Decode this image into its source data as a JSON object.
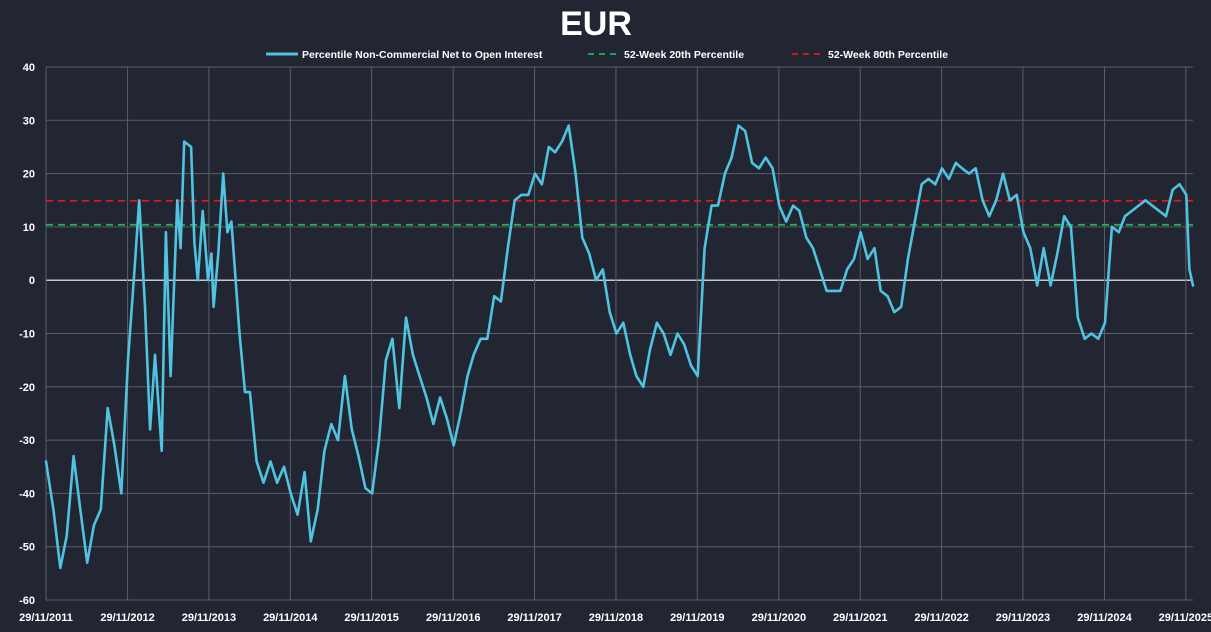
{
  "chart_data": {
    "type": "line",
    "title": "EUR",
    "xlabel": "",
    "ylabel": "",
    "ylim": [
      -60,
      40
    ],
    "yticks": [
      40,
      30,
      20,
      10,
      0,
      -10,
      -20,
      -30,
      -40,
      -50,
      -60
    ],
    "x_range": [
      "2011-11-29",
      "2025-12-31"
    ],
    "xticks": [
      {
        "date": "2011-11-29",
        "label": "29/11/2011"
      },
      {
        "date": "2012-11-29",
        "label": "29/11/2012"
      },
      {
        "date": "2013-11-29",
        "label": "29/11/2013"
      },
      {
        "date": "2014-11-29",
        "label": "29/11/2014"
      },
      {
        "date": "2015-11-29",
        "label": "29/11/2015"
      },
      {
        "date": "2016-11-29",
        "label": "29/11/2016"
      },
      {
        "date": "2017-11-29",
        "label": "29/11/2017"
      },
      {
        "date": "2018-11-29",
        "label": "29/11/2018"
      },
      {
        "date": "2019-11-29",
        "label": "29/11/2019"
      },
      {
        "date": "2020-11-29",
        "label": "29/11/2020"
      },
      {
        "date": "2021-11-29",
        "label": "29/11/2021"
      },
      {
        "date": "2022-11-29",
        "label": "29/11/2022"
      },
      {
        "date": "2023-11-29",
        "label": "29/11/2023"
      },
      {
        "date": "2024-11-29",
        "label": "29/11/2024"
      },
      {
        "date": "2025-11-29",
        "label": "29/11/2025"
      }
    ],
    "grid": true,
    "legend_position": "top",
    "series": [
      {
        "name": "Percentile Non-Commercial Net to Open Interest",
        "color": "#4fc3e0",
        "style": "solid",
        "points": [
          [
            "2011-11-29",
            -34
          ],
          [
            "2012-01-01",
            -43
          ],
          [
            "2012-02-01",
            -54
          ],
          [
            "2012-03-01",
            -48
          ],
          [
            "2012-04-01",
            -33
          ],
          [
            "2012-05-01",
            -43
          ],
          [
            "2012-06-01",
            -53
          ],
          [
            "2012-07-01",
            -46
          ],
          [
            "2012-08-01",
            -43
          ],
          [
            "2012-09-01",
            -24
          ],
          [
            "2012-10-01",
            -31
          ],
          [
            "2012-11-01",
            -40
          ],
          [
            "2012-12-01",
            -15
          ],
          [
            "2013-01-01",
            3
          ],
          [
            "2013-01-20",
            15
          ],
          [
            "2013-02-15",
            -5
          ],
          [
            "2013-03-10",
            -28
          ],
          [
            "2013-04-01",
            -14
          ],
          [
            "2013-05-01",
            -32
          ],
          [
            "2013-05-20",
            9
          ],
          [
            "2013-06-10",
            -18
          ],
          [
            "2013-07-10",
            15
          ],
          [
            "2013-07-25",
            6
          ],
          [
            "2013-08-10",
            26
          ],
          [
            "2013-09-10",
            25
          ],
          [
            "2013-09-25",
            7
          ],
          [
            "2013-10-10",
            0
          ],
          [
            "2013-11-01",
            13
          ],
          [
            "2013-11-25",
            0
          ],
          [
            "2013-12-10",
            5
          ],
          [
            "2013-12-20",
            -5
          ],
          [
            "2014-01-10",
            5
          ],
          [
            "2014-02-01",
            20
          ],
          [
            "2014-02-20",
            9
          ],
          [
            "2014-03-10",
            11
          ],
          [
            "2014-04-15",
            -10
          ],
          [
            "2014-05-10",
            -21
          ],
          [
            "2014-06-01",
            -21
          ],
          [
            "2014-07-01",
            -34
          ],
          [
            "2014-08-01",
            -38
          ],
          [
            "2014-09-01",
            -34
          ],
          [
            "2014-10-01",
            -38
          ],
          [
            "2014-11-01",
            -35
          ],
          [
            "2014-12-01",
            -40
          ],
          [
            "2015-01-01",
            -44
          ],
          [
            "2015-02-01",
            -36
          ],
          [
            "2015-03-01",
            -49
          ],
          [
            "2015-04-01",
            -43
          ],
          [
            "2015-05-01",
            -32
          ],
          [
            "2015-06-01",
            -27
          ],
          [
            "2015-07-01",
            -30
          ],
          [
            "2015-08-01",
            -18
          ],
          [
            "2015-09-01",
            -28
          ],
          [
            "2015-10-01",
            -33
          ],
          [
            "2015-11-01",
            -39
          ],
          [
            "2015-12-01",
            -40
          ],
          [
            "2016-01-01",
            -30
          ],
          [
            "2016-02-01",
            -15
          ],
          [
            "2016-03-01",
            -11
          ],
          [
            "2016-04-01",
            -24
          ],
          [
            "2016-05-01",
            -7
          ],
          [
            "2016-06-01",
            -14
          ],
          [
            "2016-07-01",
            -18
          ],
          [
            "2016-08-01",
            -22
          ],
          [
            "2016-09-01",
            -27
          ],
          [
            "2016-10-01",
            -22
          ],
          [
            "2016-11-01",
            -26
          ],
          [
            "2016-12-01",
            -31
          ],
          [
            "2017-01-01",
            -25
          ],
          [
            "2017-02-01",
            -18
          ],
          [
            "2017-03-01",
            -14
          ],
          [
            "2017-04-01",
            -11
          ],
          [
            "2017-05-01",
            -11
          ],
          [
            "2017-06-01",
            -3
          ],
          [
            "2017-07-01",
            -4
          ],
          [
            "2017-08-01",
            6
          ],
          [
            "2017-09-01",
            15
          ],
          [
            "2017-10-01",
            16
          ],
          [
            "2017-11-01",
            16
          ],
          [
            "2017-12-01",
            20
          ],
          [
            "2018-01-01",
            18
          ],
          [
            "2018-02-01",
            25
          ],
          [
            "2018-03-01",
            24
          ],
          [
            "2018-04-01",
            26
          ],
          [
            "2018-05-01",
            29
          ],
          [
            "2018-06-01",
            20
          ],
          [
            "2018-07-01",
            8
          ],
          [
            "2018-08-01",
            5
          ],
          [
            "2018-09-01",
            0
          ],
          [
            "2018-10-01",
            2
          ],
          [
            "2018-11-01",
            -6
          ],
          [
            "2018-12-01",
            -10
          ],
          [
            "2019-01-01",
            -8
          ],
          [
            "2019-02-01",
            -14
          ],
          [
            "2019-03-01",
            -18
          ],
          [
            "2019-04-01",
            -20
          ],
          [
            "2019-05-01",
            -13
          ],
          [
            "2019-06-01",
            -8
          ],
          [
            "2019-07-01",
            -10
          ],
          [
            "2019-08-01",
            -14
          ],
          [
            "2019-09-01",
            -10
          ],
          [
            "2019-10-01",
            -12
          ],
          [
            "2019-11-01",
            -16
          ],
          [
            "2019-12-01",
            -18
          ],
          [
            "2020-01-01",
            6
          ],
          [
            "2020-02-01",
            14
          ],
          [
            "2020-03-01",
            14
          ],
          [
            "2020-04-01",
            20
          ],
          [
            "2020-05-01",
            23
          ],
          [
            "2020-06-01",
            29
          ],
          [
            "2020-07-01",
            28
          ],
          [
            "2020-08-01",
            22
          ],
          [
            "2020-09-01",
            21
          ],
          [
            "2020-10-01",
            23
          ],
          [
            "2020-11-01",
            21
          ],
          [
            "2020-12-01",
            14
          ],
          [
            "2021-01-01",
            11
          ],
          [
            "2021-02-01",
            14
          ],
          [
            "2021-03-01",
            13
          ],
          [
            "2021-04-01",
            8
          ],
          [
            "2021-05-01",
            6
          ],
          [
            "2021-06-01",
            2
          ],
          [
            "2021-07-01",
            -2
          ],
          [
            "2021-08-01",
            -2
          ],
          [
            "2021-09-01",
            -2
          ],
          [
            "2021-10-01",
            2
          ],
          [
            "2021-11-01",
            4
          ],
          [
            "2021-12-01",
            9
          ],
          [
            "2022-01-01",
            4
          ],
          [
            "2022-02-01",
            6
          ],
          [
            "2022-03-01",
            -2
          ],
          [
            "2022-04-01",
            -3
          ],
          [
            "2022-05-01",
            -6
          ],
          [
            "2022-06-01",
            -5
          ],
          [
            "2022-07-01",
            4
          ],
          [
            "2022-08-01",
            11
          ],
          [
            "2022-09-01",
            18
          ],
          [
            "2022-10-01",
            19
          ],
          [
            "2022-11-01",
            18
          ],
          [
            "2022-12-01",
            21
          ],
          [
            "2023-01-01",
            19
          ],
          [
            "2023-02-01",
            22
          ],
          [
            "2023-03-01",
            21
          ],
          [
            "2023-04-01",
            20
          ],
          [
            "2023-05-01",
            21
          ],
          [
            "2023-06-01",
            15
          ],
          [
            "2023-07-01",
            12
          ],
          [
            "2023-08-01",
            15
          ],
          [
            "2023-09-01",
            20
          ],
          [
            "2023-10-01",
            15
          ],
          [
            "2023-11-01",
            16
          ],
          [
            "2023-12-01",
            9
          ],
          [
            "2024-01-01",
            6
          ],
          [
            "2024-02-01",
            -1
          ],
          [
            "2024-03-01",
            6
          ],
          [
            "2024-04-01",
            -1
          ],
          [
            "2024-05-01",
            5
          ],
          [
            "2024-06-01",
            12
          ],
          [
            "2024-07-01",
            10
          ],
          [
            "2024-08-01",
            -7
          ],
          [
            "2024-09-01",
            -11
          ],
          [
            "2024-10-01",
            -10
          ],
          [
            "2024-11-01",
            -11
          ],
          [
            "2024-12-01",
            -8
          ],
          [
            "2025-01-01",
            10
          ],
          [
            "2025-02-01",
            9
          ],
          [
            "2025-03-01",
            12
          ],
          [
            "2025-04-01",
            13
          ],
          [
            "2025-05-01",
            14
          ],
          [
            "2025-06-01",
            15
          ],
          [
            "2025-07-01",
            14
          ],
          [
            "2025-08-01",
            13
          ],
          [
            "2025-09-01",
            12
          ],
          [
            "2025-10-01",
            17
          ],
          [
            "2025-11-01",
            18
          ],
          [
            "2025-12-01",
            16
          ],
          [
            "2025-12-15",
            2
          ],
          [
            "2025-12-31",
            -1
          ]
        ]
      },
      {
        "name": "52-Week 20th Percentile",
        "color": "#1db954",
        "style": "dashed",
        "constant": 10.4
      },
      {
        "name": "52-Week 80th Percentile",
        "color": "#e01818",
        "style": "dashed",
        "constant": 14.9
      }
    ]
  }
}
